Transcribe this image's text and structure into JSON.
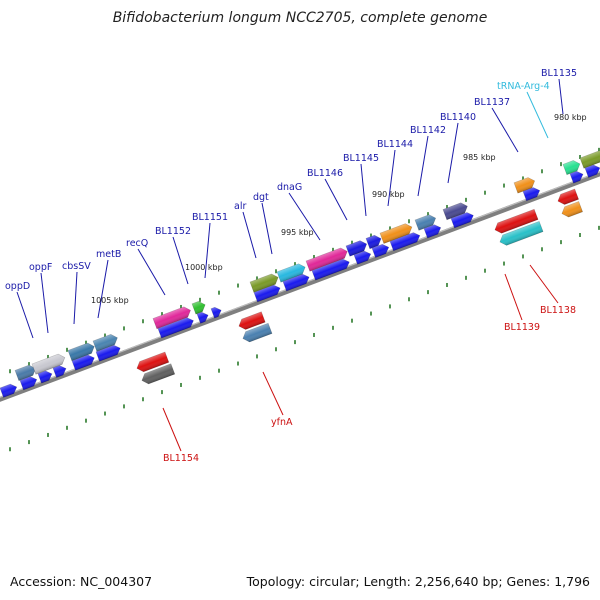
{
  "title": "Bifidobacterium longum NCC2705, complete genome",
  "footer": {
    "accession": "Accession: NC_004307",
    "summary": "Topology: circular; Length: 2,256,640 bp; Genes: 1,796"
  },
  "colors": {
    "backbone": "#7f7f7f",
    "cds_track": "#1a1aee",
    "label_forward": "#1a1aa8",
    "label_reverse": "#cc1111",
    "label_trna": "#33bbdd",
    "tick": "#2a7a2a"
  },
  "ticks": [
    "1005 kbp",
    "1000 kbp",
    "995 kbp",
    "990 kbp",
    "985 kbp",
    "980 kbp"
  ],
  "forward_labels": [
    "oppD",
    "oppF",
    "cbsSV",
    "metB",
    "recQ",
    "BL1152",
    "BL1151",
    "alr",
    "dgt",
    "dnaG",
    "BL1146",
    "BL1145",
    "BL1144",
    "BL1142",
    "BL1140",
    "BL1137",
    "tRNA-Arg-4",
    "BL1135"
  ],
  "reverse_labels": [
    "BL1154",
    "yfnA",
    "BL1139",
    "BL1138"
  ],
  "forward_genes": [
    {
      "color": "#4a7aa8"
    },
    {
      "color": "#c8c8d0"
    },
    {
      "color": "#3a78a8"
    },
    {
      "color": "#4a84b0"
    },
    {
      "color": "#e0289a"
    },
    {
      "color": "#30c030"
    },
    {
      "color": "#7a9a28"
    },
    {
      "color": "#28b8e0"
    },
    {
      "color": "#e02898"
    },
    {
      "color": "#1a1ae0"
    },
    {
      "color": "#1a1ae0"
    },
    {
      "color": "#f0901a"
    },
    {
      "color": "#4a80b0"
    },
    {
      "color": "#4a4a90"
    },
    {
      "color": "#f0901a"
    },
    {
      "color": "#28e090"
    },
    {
      "color": "#7a9a28"
    }
  ],
  "reverse_genes": [
    {
      "color": "#dd1111"
    },
    {
      "color": "#606060"
    },
    {
      "color": "#dd1111"
    },
    {
      "color": "#4a80b0"
    },
    {
      "color": "#dd1111"
    },
    {
      "color": "#28c0c8"
    },
    {
      "color": "#dd1111"
    },
    {
      "color": "#f0901a"
    }
  ]
}
